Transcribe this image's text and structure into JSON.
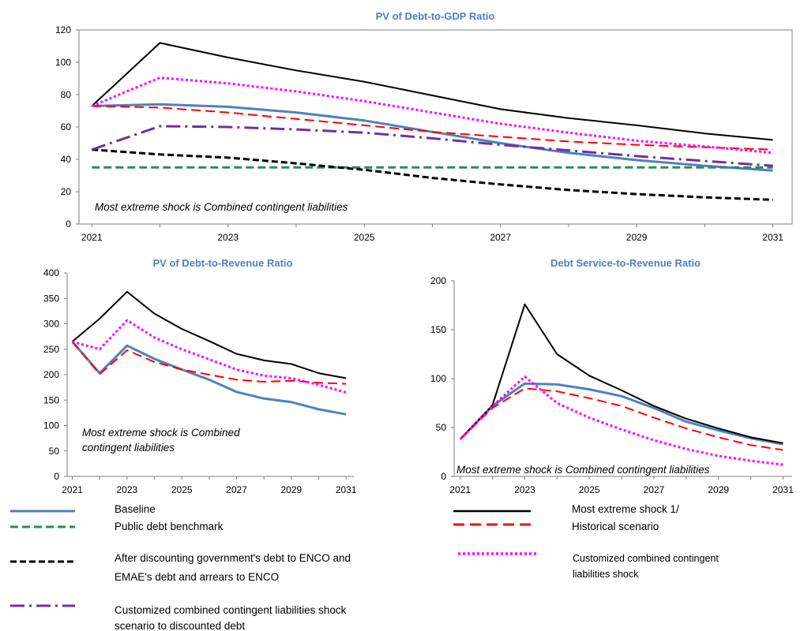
{
  "colors": {
    "baseline": "#4F81BD",
    "benchmark": "#2E8B57",
    "extreme": "#000000",
    "historical": "#FF0000",
    "after_discount": "#000000",
    "customized": "#FF00FF",
    "customized_discounted": "#7030A0",
    "title": "#4F81BD"
  },
  "legend": {
    "baseline": "Baseline",
    "benchmark": "Public debt benchmark",
    "after_discount_line1": "After discounting government's debt to ENCO and",
    "after_discount_line2": "EMAE's debt and arrears to ENCO",
    "customized_discounted_line1": "Customized combined contingent liabilities shock",
    "customized_discounted_line2": "scenario to discounted debt",
    "extreme": "Most extreme shock 1/",
    "historical": "Historical scenario",
    "customized_line1": "Customized combined contingent",
    "customized_line2": "liabilities shock"
  },
  "chart_data": [
    {
      "type": "line",
      "title": "PV of Debt-to-GDP Ratio",
      "annotation": "Most extreme shock is Combined contingent liabilities",
      "x": [
        2021,
        2022,
        2023,
        2024,
        2025,
        2026,
        2027,
        2028,
        2029,
        2030,
        2031
      ],
      "x_ticks": [
        "2021",
        "2023",
        "2025",
        "2027",
        "2029",
        "2031"
      ],
      "y_ticks": [
        "0",
        "20",
        "40",
        "60",
        "80",
        "100",
        "120"
      ],
      "ylim": [
        0,
        120
      ],
      "series": [
        {
          "key": "baseline",
          "values": [
            73,
            74,
            72.5,
            69,
            64,
            57,
            50,
            44,
            39.5,
            36,
            33
          ]
        },
        {
          "key": "benchmark",
          "values": [
            35,
            35,
            35,
            35,
            35,
            35,
            35,
            35,
            35,
            35,
            35
          ]
        },
        {
          "key": "after_discount",
          "values": [
            46,
            43,
            41,
            37.5,
            33.5,
            28.5,
            24.5,
            21,
            18.5,
            16.5,
            15
          ]
        },
        {
          "key": "customized_discounted",
          "values": [
            46,
            60.5,
            60,
            58.5,
            56.5,
            53,
            49,
            45.5,
            42,
            39,
            36
          ]
        },
        {
          "key": "extreme",
          "values": [
            73,
            112,
            103,
            95,
            88,
            79.5,
            71,
            65.5,
            61,
            56,
            52
          ]
        },
        {
          "key": "historical",
          "values": [
            73,
            72,
            69,
            65,
            61,
            57,
            54,
            51,
            49,
            47.5,
            46
          ]
        },
        {
          "key": "customized",
          "values": [
            73,
            90.5,
            87,
            82,
            76,
            69,
            62,
            56.5,
            51.5,
            48,
            44
          ]
        }
      ]
    },
    {
      "type": "line",
      "title": "PV of Debt-to-Revenue Ratio",
      "annotation_line1": "Most extreme shock is Combined",
      "annotation_line2": "contingent liabilities",
      "x": [
        2021,
        2022,
        2023,
        2024,
        2025,
        2026,
        2027,
        2028,
        2029,
        2030,
        2031
      ],
      "x_ticks": [
        "2021",
        "2023",
        "2025",
        "2027",
        "2029",
        "2031"
      ],
      "y_ticks": [
        "0",
        "50",
        "100",
        "150",
        "200",
        "250",
        "300",
        "350",
        "400"
      ],
      "ylim": [
        0,
        400
      ],
      "series": [
        {
          "key": "baseline",
          "values": [
            265,
            203,
            257,
            231,
            210,
            190,
            166,
            153,
            146,
            132,
            122
          ]
        },
        {
          "key": "extreme",
          "values": [
            265,
            310,
            363,
            320,
            290,
            266,
            241,
            228,
            221,
            203,
            193
          ]
        },
        {
          "key": "historical",
          "values": [
            265,
            201,
            248,
            225,
            210,
            200,
            190,
            186,
            188,
            184,
            182
          ]
        },
        {
          "key": "customized",
          "values": [
            265,
            250,
            307,
            273,
            250,
            230,
            210,
            198,
            193,
            180,
            165
          ]
        }
      ]
    },
    {
      "type": "line",
      "title": "Debt Service-to-Revenue Ratio",
      "annotation": "Most extreme shock is Combined contingent liabilities",
      "x": [
        2021,
        2022,
        2023,
        2024,
        2025,
        2026,
        2027,
        2028,
        2029,
        2030,
        2031
      ],
      "x_ticks": [
        "2021",
        "2023",
        "2025",
        "2027",
        "2029",
        "2031"
      ],
      "y_ticks": [
        "0",
        "50",
        "100",
        "150",
        "200"
      ],
      "ylim": [
        0,
        200
      ],
      "series": [
        {
          "key": "baseline",
          "values": [
            38,
            72,
            95,
            94,
            89,
            82,
            70,
            56,
            47,
            39,
            33
          ]
        },
        {
          "key": "extreme",
          "values": [
            38,
            73,
            176,
            125,
            103,
            88,
            72,
            59,
            49,
            40,
            34
          ]
        },
        {
          "key": "historical",
          "values": [
            38,
            70,
            90,
            87,
            80,
            72,
            60,
            49,
            40,
            32,
            27
          ]
        },
        {
          "key": "customized",
          "values": [
            38,
            72,
            102,
            75,
            60,
            48,
            37,
            28,
            21,
            16,
            12
          ]
        }
      ]
    }
  ]
}
